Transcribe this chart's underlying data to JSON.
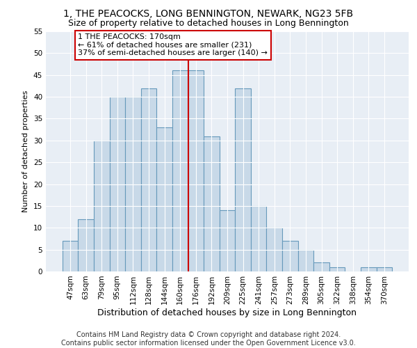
{
  "title": "1, THE PEACOCKS, LONG BENNINGTON, NEWARK, NG23 5FB",
  "subtitle": "Size of property relative to detached houses in Long Bennington",
  "xlabel": "Distribution of detached houses by size in Long Bennington",
  "ylabel": "Number of detached properties",
  "bar_labels": [
    "47sqm",
    "63sqm",
    "79sqm",
    "95sqm",
    "112sqm",
    "128sqm",
    "144sqm",
    "160sqm",
    "176sqm",
    "192sqm",
    "209sqm",
    "225sqm",
    "241sqm",
    "257sqm",
    "273sqm",
    "289sqm",
    "305sqm",
    "322sqm",
    "338sqm",
    "354sqm",
    "370sqm"
  ],
  "bar_values": [
    7,
    12,
    30,
    40,
    40,
    42,
    33,
    46,
    46,
    31,
    14,
    42,
    15,
    10,
    7,
    5,
    2,
    1,
    0,
    1,
    1
  ],
  "bar_color": "#c8d9e8",
  "bar_edge_color": "#6699bb",
  "vline_color": "#cc0000",
  "annotation_text": "1 THE PEACOCKS: 170sqm\n← 61% of detached houses are smaller (231)\n37% of semi-detached houses are larger (140) →",
  "annotation_box_color": "#ffffff",
  "annotation_box_edge": "#cc0000",
  "ylim": [
    0,
    55
  ],
  "yticks": [
    0,
    5,
    10,
    15,
    20,
    25,
    30,
    35,
    40,
    45,
    50,
    55
  ],
  "background_color": "#e8eef5",
  "footer_line1": "Contains HM Land Registry data © Crown copyright and database right 2024.",
  "footer_line2": "Contains public sector information licensed under the Open Government Licence v3.0.",
  "title_fontsize": 10,
  "subtitle_fontsize": 9,
  "xlabel_fontsize": 9,
  "ylabel_fontsize": 8,
  "tick_fontsize": 7.5,
  "footer_fontsize": 7
}
